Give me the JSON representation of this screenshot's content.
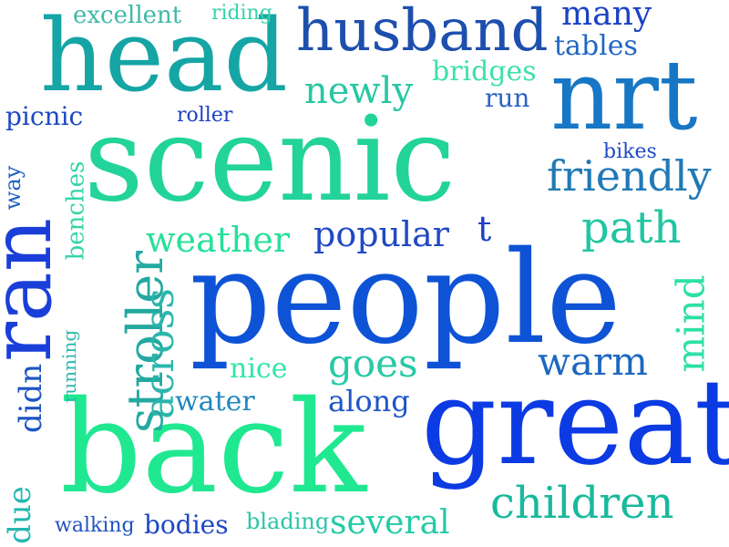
{
  "words": {
    "people": {
      "text": "people",
      "color": "#0e53d6"
    },
    "scenic": {
      "text": "scenic",
      "color": "#22d39a"
    },
    "back": {
      "text": "back",
      "color": "#1fe891"
    },
    "great": {
      "text": "great",
      "color": "#0c3be4"
    },
    "head": {
      "text": "head",
      "color": "#16a5a5"
    },
    "nrt": {
      "text": "nrt",
      "color": "#1877c4"
    },
    "husband": {
      "text": "husband",
      "color": "#1d4fad"
    },
    "ran": {
      "text": "ran",
      "color": "#1a3fd9"
    },
    "children": {
      "text": "children",
      "color": "#19b99c"
    },
    "stroller": {
      "text": "stroller",
      "color": "#23a9a0"
    },
    "friendly": {
      "text": "friendly",
      "color": "#2179b6"
    },
    "weather": {
      "text": "weather",
      "color": "#26e09a"
    },
    "popular": {
      "text": "popular",
      "color": "#2149c4"
    },
    "path": {
      "text": "path",
      "color": "#21c6a2"
    },
    "newly": {
      "text": "newly",
      "color": "#28c7a3"
    },
    "many": {
      "text": "many",
      "color": "#1a42c6"
    },
    "warm": {
      "text": "warm",
      "color": "#1d68c0"
    },
    "goes": {
      "text": "goes",
      "color": "#27c9a6"
    },
    "mind": {
      "text": "mind",
      "color": "#2ee0a7"
    },
    "across": {
      "text": "across",
      "color": "#2bb6ad"
    },
    "several": {
      "text": "several",
      "color": "#24cba6"
    },
    "bodies": {
      "text": "bodies",
      "color": "#1d47c5"
    },
    "along": {
      "text": "along",
      "color": "#1e55c8"
    },
    "water": {
      "text": "water",
      "color": "#2088bd"
    },
    "nice": {
      "text": "nice",
      "color": "#30e6a8"
    },
    "didn": {
      "text": "didn",
      "color": "#1d55c5"
    },
    "due": {
      "text": "due",
      "color": "#25b7b0"
    },
    "picnic": {
      "text": "picnic",
      "color": "#1f49c0"
    },
    "excellent": {
      "text": "excellent",
      "color": "#3fb9a6"
    },
    "riding": {
      "text": "riding",
      "color": "#36d4a8"
    },
    "bridges": {
      "text": "bridges",
      "color": "#3fe0a6"
    },
    "tables": {
      "text": "tables",
      "color": "#2266c2"
    },
    "run": {
      "text": "run",
      "color": "#2a63c6"
    },
    "roller": {
      "text": "roller",
      "color": "#1f40c0"
    },
    "bikes": {
      "text": "bikes",
      "color": "#214ac4"
    },
    "t": {
      "text": "t",
      "color": "#1d3fc1"
    },
    "benches": {
      "text": "benches",
      "color": "#32d5a8"
    },
    "way": {
      "text": "way",
      "color": "#2262c3"
    },
    "running": {
      "text": "running",
      "color": "#2ab7ac"
    },
    "walking": {
      "text": "walking",
      "color": "#2152c4"
    },
    "blading": {
      "text": "blading",
      "color": "#2bc5a8"
    }
  }
}
